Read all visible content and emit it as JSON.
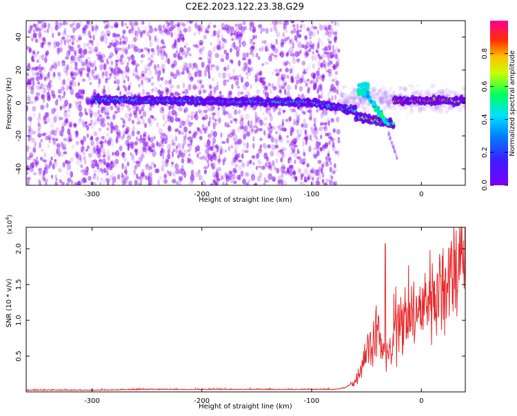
{
  "page_title": "C2E2.2023.122.23.38.G29",
  "colors": {
    "spectrogram_low": "#7b00ff",
    "spectrogram_mid": "#00e5ff",
    "spectrogram_high": "#ff1a1a",
    "snr_line": "#e8282a",
    "axis": "#000000"
  },
  "chart_data": [
    {
      "type": "heatmap",
      "title": "C2E2.2023.122.23.38.G29",
      "xlabel": "Height of straight line (km)",
      "ylabel": "Frequency (Hz)",
      "xlim": [
        -360,
        40
      ],
      "ylim": [
        -50,
        50
      ],
      "xticks": [
        -300,
        -200,
        -100,
        0
      ],
      "yticks": [
        -40,
        -20,
        0,
        20,
        40
      ],
      "colorbar": {
        "label": "Normalized spectral amplitude",
        "range": [
          0.0,
          1.0
        ],
        "ticks": [
          "0.0",
          "0.2",
          "0.4",
          "0.6",
          "0.8"
        ],
        "colormap": "rainbow (purple → blue → cyan → green → yellow → orange → red → magenta)"
      },
      "features": {
        "noise_region_x": [
          -360,
          -75
        ],
        "signal_start_x": -300,
        "signal_center_frequency_hz": 2,
        "dip_x": [
          -60,
          -25
        ],
        "dip_min_frequency_hz": -13,
        "strong_signal_x": [
          -25,
          40
        ]
      }
    },
    {
      "type": "line",
      "xlabel": "Height of straight line (km)",
      "ylabel": "SNR (10 * v/v)",
      "y_multiplier": "(x10",
      "y_multiplier_exponent": "4",
      "xlim": [
        -360,
        40
      ],
      "ylim": [
        0,
        2.3
      ],
      "xticks": [
        -300,
        -200,
        -100,
        0
      ],
      "yticks": [
        0.5,
        1.0,
        1.5,
        2.0
      ],
      "series": [
        {
          "x": [
            -360,
            -300,
            -250,
            -200,
            -150,
            -100,
            -80,
            -70,
            -60,
            -55,
            -50,
            -45,
            -40,
            -35,
            -30,
            -27,
            -25,
            -20,
            -15,
            -10,
            -5,
            0,
            5,
            10,
            15,
            20,
            25,
            30,
            35,
            40
          ],
          "y": [
            0.02,
            0.02,
            0.03,
            0.03,
            0.03,
            0.03,
            0.03,
            0.05,
            0.15,
            0.35,
            0.6,
            0.7,
            0.9,
            0.5,
            0.6,
            0.45,
            0.85,
            1.15,
            1.0,
            1.1,
            1.05,
            1.15,
            1.3,
            1.4,
            1.4,
            1.5,
            1.65,
            1.75,
            1.85,
            1.8
          ]
        }
      ]
    }
  ]
}
